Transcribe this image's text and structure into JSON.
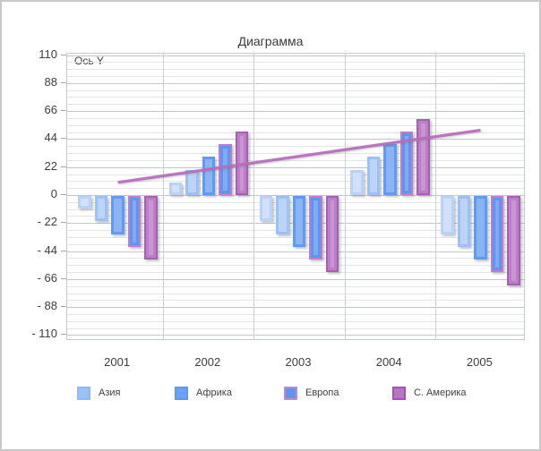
{
  "window": {
    "background": "#ffffff",
    "border_color": "#c9c9c9"
  },
  "chart_data": {
    "type": "bar",
    "title": "Диаграмма",
    "y_axis_label": "Ось Y",
    "categories": [
      "2001",
      "2002",
      "2003",
      "2004",
      "2005"
    ],
    "y_ticks": [
      110,
      88,
      66,
      44,
      22,
      0,
      -22,
      -44,
      -66,
      -88,
      -110
    ],
    "y_tick_labels": [
      "110",
      "88",
      "66",
      "44",
      "22",
      "0",
      "- 22",
      "- 44",
      "- 66",
      "- 88",
      "- 110"
    ],
    "ylim": [
      -110,
      110
    ],
    "y_major_step": 22,
    "y_minor_step": 5.5,
    "grid": true,
    "legend_position": "bottom",
    "series": [
      {
        "name": "",
        "values": [
          -10,
          10,
          -20,
          20,
          -30
        ],
        "fill": "#b9d2f7",
        "inner": "#d2e1fa",
        "border": "#b9d2f7"
      },
      {
        "name": "Азия",
        "values": [
          -20,
          20,
          -30,
          30,
          -40
        ],
        "fill": "#9cc1f5",
        "inner": "#bcd4f8",
        "border": "#9cc1f5"
      },
      {
        "name": "Африка",
        "values": [
          -30,
          30,
          -40,
          40,
          -50
        ],
        "fill": "#5f9bf0",
        "inner": "#8ab4f4",
        "border": "#5f9bf0"
      },
      {
        "name": "Европа",
        "values": [
          -40,
          40,
          -50,
          50,
          -60
        ],
        "fill": "#6095ef",
        "inner": "#81aaf2",
        "border": "#bb80c9"
      },
      {
        "name": "С. Америка",
        "values": [
          -50,
          50,
          -60,
          60,
          -70
        ],
        "fill": "#bd7ec8",
        "inner": "#cb94d3",
        "border": "#a55fb3"
      }
    ],
    "trend": {
      "start_category": "2001",
      "end_category": "2005",
      "start_value": 10,
      "end_value": 51,
      "color": "#b66cbd"
    }
  },
  "legend": {
    "items": [
      {
        "label": "Азия",
        "fill": "#9cc1f5",
        "border": "#8fb9f3"
      },
      {
        "label": "Африка",
        "fill": "#6ba2f2",
        "border": "#5f98f0"
      },
      {
        "label": "Европа",
        "fill": "#6095ef",
        "border": "#c389cd"
      },
      {
        "label": "С. Америка",
        "fill": "#b676c3",
        "border": "#a254b0"
      }
    ]
  }
}
